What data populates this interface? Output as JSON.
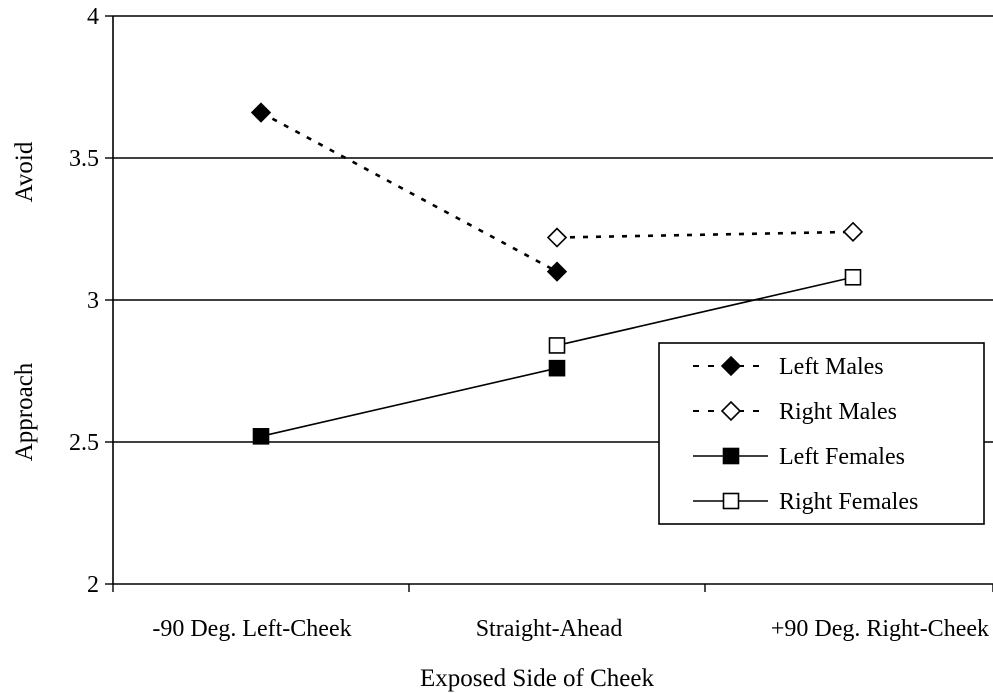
{
  "chart_data": {
    "type": "line",
    "title": "",
    "xlabel": "Exposed Side of Cheek",
    "ylabel_top": "Avoid",
    "ylabel_bottom": "Approach",
    "ylim": [
      2,
      4
    ],
    "yticks": [
      "2",
      "2.5",
      "3",
      "3.5",
      "4"
    ],
    "grid": true,
    "legend_position": "right",
    "categories": [
      "-90 Deg. Left-Cheek",
      "Straight-Ahead",
      "+90 Deg. Right-Cheek"
    ],
    "series": [
      {
        "name": "Left Males",
        "values": [
          3.66,
          3.1,
          null
        ],
        "marker": "diamond-filled",
        "line": "dashed"
      },
      {
        "name": "Right Males",
        "values": [
          null,
          3.22,
          3.24
        ],
        "marker": "diamond-open",
        "line": "dashed"
      },
      {
        "name": "Left Females",
        "values": [
          2.52,
          2.76,
          null
        ],
        "marker": "square-filled",
        "line": "solid"
      },
      {
        "name": "Right Females",
        "values": [
          null,
          2.84,
          3.08
        ],
        "marker": "square-open",
        "line": "solid"
      }
    ],
    "colors": {
      "ink": "#000000",
      "background": "#ffffff"
    }
  }
}
